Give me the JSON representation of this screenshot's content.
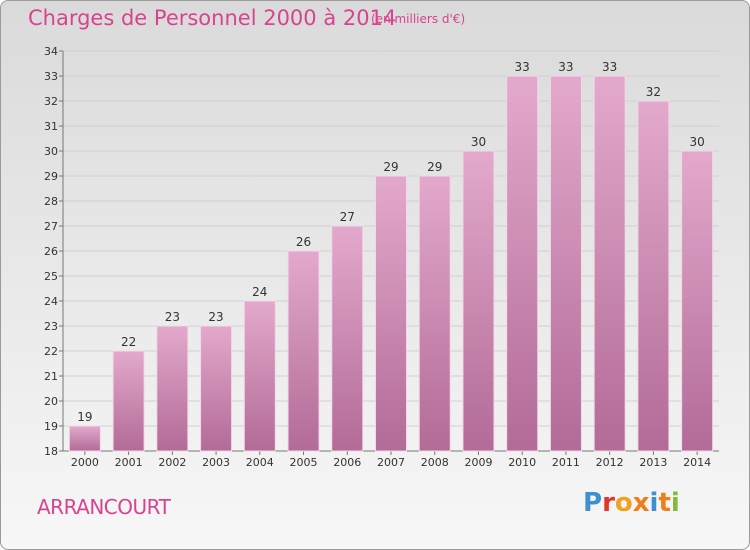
{
  "header": {
    "title": "Charges de Personnel 2000 à 2014",
    "subtitle": "(en milliers d'€)"
  },
  "footer": {
    "commune": "ARRANCOURT",
    "logo_text": "Proxiti",
    "logo_colors": [
      "#3f8fd1",
      "#e2342b",
      "#f0a21d",
      "#ef7d1a",
      "#3f8fd1",
      "#ef7d1a",
      "#86b83c"
    ]
  },
  "colors": {
    "bar_top": "#e3a9cc",
    "bar_bottom": "#b26b97",
    "title": "#d8438f"
  },
  "chart_data": {
    "type": "bar",
    "categories": [
      "2000",
      "2001",
      "2002",
      "2003",
      "2004",
      "2005",
      "2006",
      "2007",
      "2008",
      "2009",
      "2010",
      "2011",
      "2012",
      "2013",
      "2014"
    ],
    "values": [
      19,
      22,
      23,
      23,
      24,
      26,
      27,
      29,
      29,
      30,
      33,
      33,
      33,
      32,
      30
    ],
    "title": "Charges de Personnel 2000 à 2014",
    "ylim": [
      18,
      34
    ],
    "yticks": [
      18,
      19,
      20,
      21,
      22,
      23,
      24,
      25,
      26,
      27,
      28,
      29,
      30,
      31,
      32,
      33,
      34
    ],
    "grid": true
  }
}
